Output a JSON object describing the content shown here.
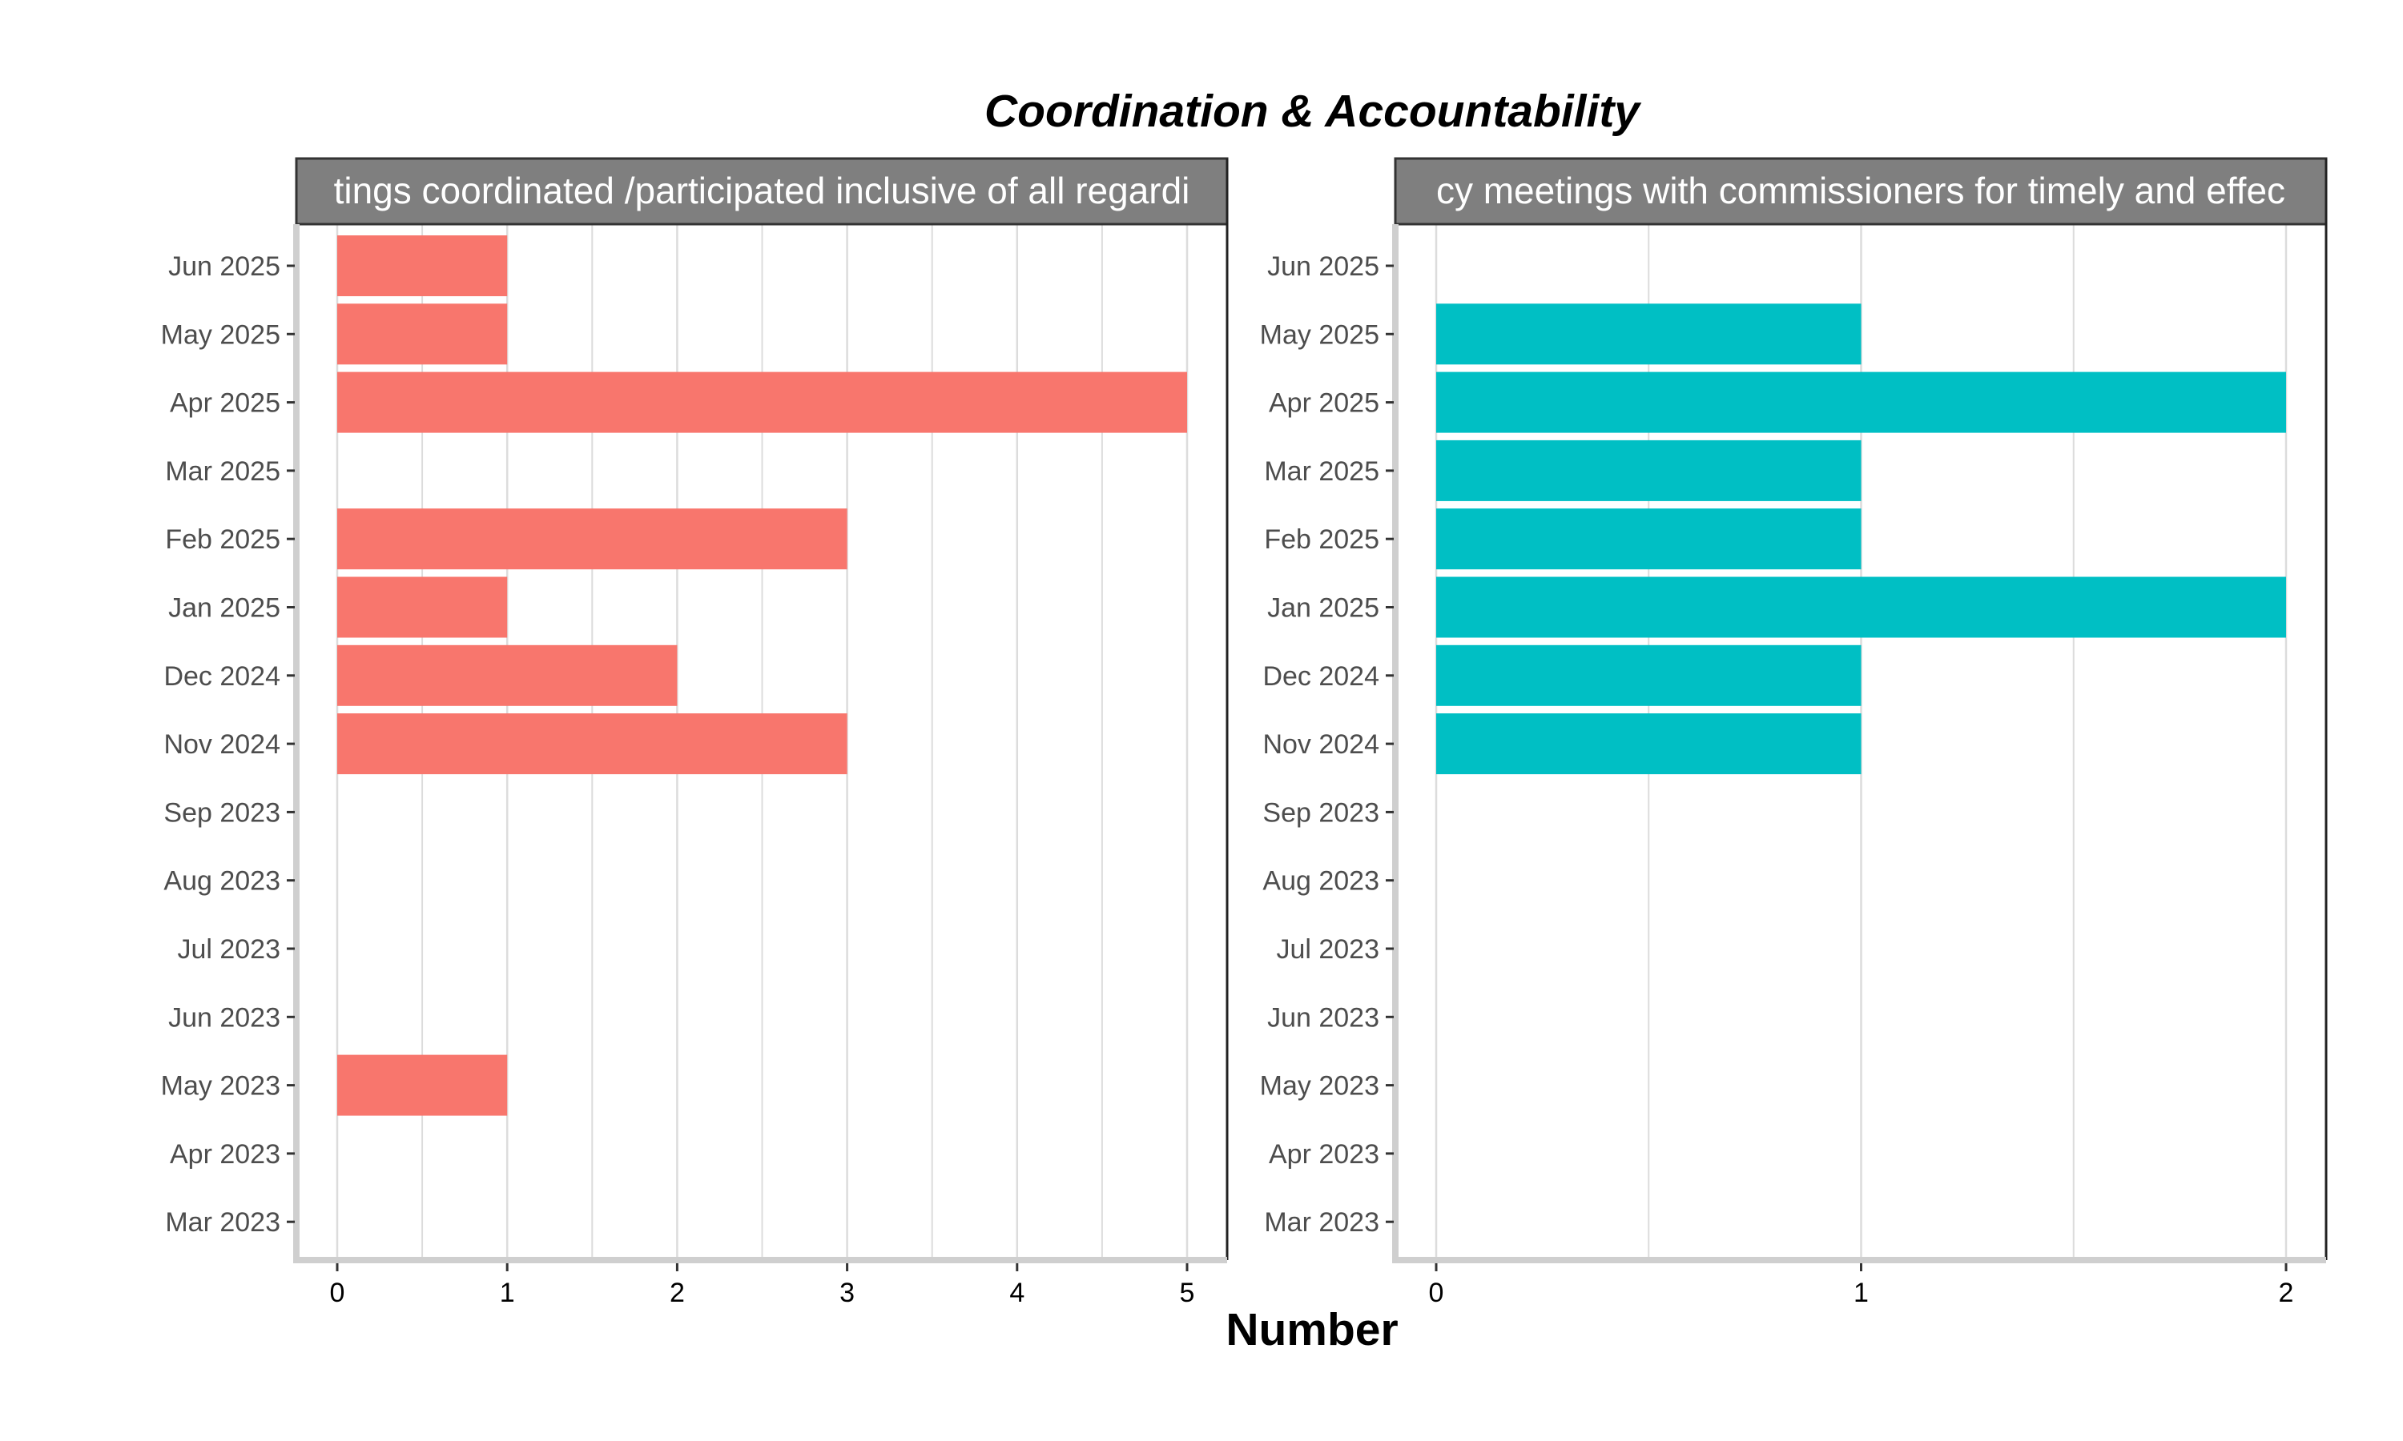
{
  "chart_data": {
    "type": "bar",
    "orientation": "horizontal",
    "title": "Coordination & Accountability",
    "xlabel": "Number",
    "ylabel": "",
    "categories": [
      "Mar 2023",
      "Apr 2023",
      "May 2023",
      "Jun 2023",
      "Jul 2023",
      "Aug 2023",
      "Sep 2023",
      "Nov 2024",
      "Dec 2024",
      "Jan 2025",
      "Feb 2025",
      "Mar 2025",
      "Apr 2025",
      "May 2025",
      "Jun 2025"
    ],
    "grid": "vertical",
    "legend": "none",
    "panels": [
      {
        "strip_label": "tings coordinated /participated inclusive of all regardi",
        "color": "#F8766D",
        "xlim": [
          0,
          5
        ],
        "xticks": [
          0,
          1,
          2,
          3,
          4,
          5
        ],
        "values": [
          0,
          0,
          1,
          0,
          0,
          0,
          0,
          3,
          2,
          1,
          3,
          0,
          5,
          1,
          1
        ]
      },
      {
        "strip_label": "cy meetings with commissioners for timely and effec",
        "color": "#00BFC4",
        "xlim": [
          0,
          2
        ],
        "xticks": [
          0,
          1,
          2
        ],
        "values": [
          0,
          0,
          0,
          0,
          0,
          0,
          0,
          1,
          1,
          2,
          1,
          1,
          2,
          1,
          0
        ]
      }
    ]
  }
}
